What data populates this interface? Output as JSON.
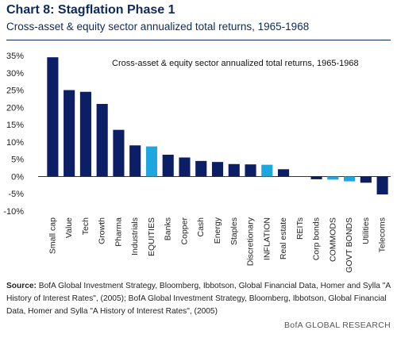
{
  "header": {
    "title": "Chart 8: Stagflation Phase 1",
    "subtitle": "Cross-asset & equity sector annualized total returns, 1965-1968"
  },
  "footer": {
    "source_label": "Source:",
    "source_text": " BofA Global Investment Strategy, Bloomberg, Ibbotson,  Global Financial Data, Homer and Sylla \"A History of Interest Rates\", (2005);  BofA Global Investment Strategy, Bloomberg, Ibbotson, Global Financial Data, Homer and Sylla \"A History of Interest Rates\", (2005)",
    "brand": "BofA GLOBAL RESEARCH"
  },
  "colors": {
    "bar_default": "#0c1f66",
    "bar_highlight": "#1ea6e0",
    "axis": "#333333"
  },
  "chart_data": {
    "type": "bar",
    "title": "Cross-asset & equity sector annualized total returns, 1965-1968",
    "categories": [
      "Small cap",
      "Value",
      "Tech",
      "Growth",
      "Pharma",
      "Industrials",
      "EQUITIES",
      "Banks",
      "Copper",
      "Cash",
      "Energy",
      "Staples",
      "Discretionary",
      "INFLATION",
      "Real estate",
      "REITs",
      "Corp bonds",
      "COMMODS",
      "GOVT BONDS",
      "Utilities",
      "Telecoms"
    ],
    "values": [
      34.5,
      25,
      24.5,
      21,
      13.5,
      9,
      8.7,
      6.3,
      5.5,
      4.5,
      4.2,
      3.6,
      3.5,
      3.4,
      2.1,
      0,
      -0.8,
      -0.9,
      -1.4,
      -1.8,
      -5.2
    ],
    "highlighted": [
      "EQUITIES",
      "INFLATION",
      "COMMODS",
      "GOVT BONDS"
    ],
    "ylim": [
      -10,
      35
    ],
    "yticks": [
      -10,
      -5,
      0,
      5,
      10,
      15,
      20,
      25,
      30,
      35
    ],
    "ytick_format": "%",
    "grid": false,
    "legend": "none"
  }
}
